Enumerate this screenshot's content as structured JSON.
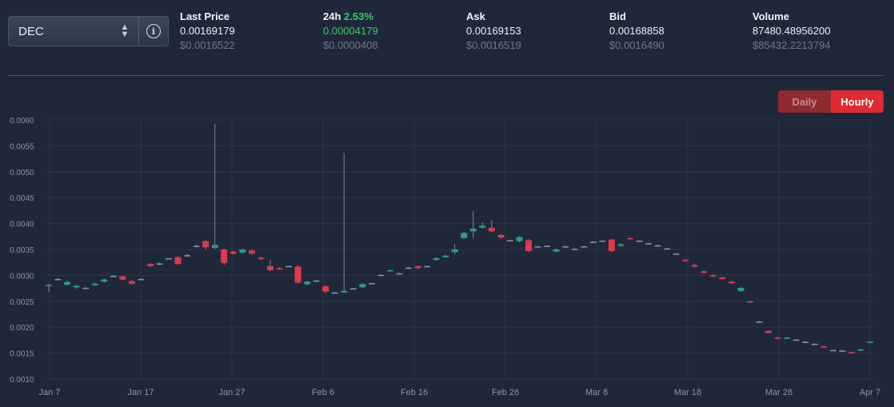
{
  "token": {
    "symbol": "DEC"
  },
  "stats": [
    {
      "key": "last",
      "label": "Last Price",
      "value": "0.00169179",
      "usd": "$0.0016522"
    },
    {
      "key": "change",
      "label": "24h",
      "pct": "2.53%",
      "value": "0.00004179",
      "usd": "$0.0000408"
    },
    {
      "key": "ask",
      "label": "Ask",
      "value": "0.00169153",
      "usd": "$0.0016519"
    },
    {
      "key": "bid",
      "label": "Bid",
      "value": "0.00168858",
      "usd": "$0.0016490"
    },
    {
      "key": "volume",
      "label": "Volume",
      "value": "87480.48956200",
      "usd": "$85432.2213794"
    }
  ],
  "toggle": {
    "daily": "Daily",
    "hourly": "Hourly",
    "active": "hourly"
  },
  "colors": {
    "up": "#26a17b",
    "down": "#e0384d",
    "neutral": "#8a93a3"
  },
  "chart_data": {
    "type": "candlestick",
    "x_ticks": [
      "Jan 7",
      "Jan 17",
      "Jan 27",
      "Feb 6",
      "Feb 16",
      "Feb 26",
      "Mar 8",
      "Mar 18",
      "Mar 28",
      "Apr 7"
    ],
    "y_ticks": [
      "0.0060",
      "0.0055",
      "0.0050",
      "0.0045",
      "0.0040",
      "0.0035",
      "0.0030",
      "0.0025",
      "0.0020",
      "0.0015",
      "0.0010"
    ],
    "ylim": [
      0.001,
      0.006
    ],
    "grid": true,
    "candles": [
      [
        0.0028,
        0.00282,
        0.00268,
        0.00284
      ],
      [
        0.00292,
        0.00293,
        0.0029,
        0.00295
      ],
      [
        0.00282,
        0.00287,
        0.0028,
        0.0029
      ],
      [
        0.00277,
        0.0028,
        0.00274,
        0.00282
      ],
      [
        0.00276,
        0.00276,
        0.00274,
        0.00278
      ],
      [
        0.00281,
        0.00284,
        0.0028,
        0.00286
      ],
      [
        0.00288,
        0.00292,
        0.00286,
        0.00294
      ],
      [
        0.00299,
        0.00298,
        0.00297,
        0.00301
      ],
      [
        0.00298,
        0.00292,
        0.0029,
        0.003
      ],
      [
        0.00289,
        0.00284,
        0.00283,
        0.00291
      ],
      [
        0.00293,
        0.00292,
        0.00291,
        0.00295
      ],
      [
        0.00322,
        0.00318,
        0.00316,
        0.00324
      ],
      [
        0.00322,
        0.00323,
        0.0032,
        0.00325
      ],
      [
        0.00332,
        0.00333,
        0.00331,
        0.00334
      ],
      [
        0.00335,
        0.00322,
        0.0032,
        0.00337
      ],
      [
        0.00338,
        0.00339,
        0.00336,
        0.00342
      ],
      [
        0.00357,
        0.00356,
        0.00354,
        0.0036
      ],
      [
        0.00366,
        0.00354,
        0.0035,
        0.00368
      ],
      [
        0.00353,
        0.00359,
        0.0035,
        0.00592
      ],
      [
        0.0035,
        0.00324,
        0.0032,
        0.00352
      ],
      [
        0.00346,
        0.00342,
        0.0034,
        0.00348
      ],
      [
        0.00344,
        0.0035,
        0.00342,
        0.00352
      ],
      [
        0.00348,
        0.00342,
        0.0034,
        0.0035
      ],
      [
        0.00334,
        0.00332,
        0.0033,
        0.00336
      ],
      [
        0.00318,
        0.0031,
        0.00308,
        0.0033
      ],
      [
        0.00314,
        0.00312,
        0.0031,
        0.00316
      ],
      [
        0.00317,
        0.00318,
        0.00316,
        0.00319
      ],
      [
        0.00317,
        0.00286,
        0.00284,
        0.0032
      ],
      [
        0.00283,
        0.00288,
        0.0028,
        0.0029
      ],
      [
        0.0029,
        0.0029,
        0.00288,
        0.00291
      ],
      [
        0.00279,
        0.00269,
        0.00265,
        0.00281
      ],
      [
        0.00267,
        0.00267,
        0.00265,
        0.00268
      ],
      [
        0.00267,
        0.0027,
        0.00266,
        0.00536
      ],
      [
        0.00275,
        0.00275,
        0.00274,
        0.00276
      ],
      [
        0.00277,
        0.00283,
        0.00276,
        0.00285
      ],
      [
        0.00284,
        0.00285,
        0.00283,
        0.00286
      ],
      [
        0.003,
        0.00301,
        0.00299,
        0.00302
      ],
      [
        0.00308,
        0.0031,
        0.00307,
        0.00311
      ],
      [
        0.00303,
        0.00304,
        0.00302,
        0.00305
      ],
      [
        0.00315,
        0.00315,
        0.00314,
        0.00316
      ],
      [
        0.00318,
        0.00314,
        0.00312,
        0.00319
      ],
      [
        0.00317,
        0.00318,
        0.00316,
        0.00319
      ],
      [
        0.0033,
        0.00333,
        0.00328,
        0.00335
      ],
      [
        0.00335,
        0.00338,
        0.00334,
        0.0034
      ],
      [
        0.00345,
        0.0035,
        0.0034,
        0.0036
      ],
      [
        0.00372,
        0.00382,
        0.0037,
        0.00384
      ],
      [
        0.00385,
        0.0039,
        0.00372,
        0.00424
      ],
      [
        0.00392,
        0.00396,
        0.0039,
        0.00402
      ],
      [
        0.00392,
        0.00385,
        0.00383,
        0.00407
      ],
      [
        0.00378,
        0.00373,
        0.0037,
        0.0038
      ],
      [
        0.00367,
        0.00368,
        0.00366,
        0.00369
      ],
      [
        0.00366,
        0.00374,
        0.00364,
        0.00376
      ],
      [
        0.00368,
        0.00347,
        0.00345,
        0.0037
      ],
      [
        0.00355,
        0.00356,
        0.00354,
        0.00357
      ],
      [
        0.00356,
        0.00357,
        0.00355,
        0.00358
      ],
      [
        0.00346,
        0.0035,
        0.00345,
        0.00352
      ],
      [
        0.00355,
        0.00356,
        0.00354,
        0.00358
      ],
      [
        0.00351,
        0.0035,
        0.00349,
        0.00353
      ],
      [
        0.00355,
        0.00356,
        0.00354,
        0.00357
      ],
      [
        0.00364,
        0.00365,
        0.00363,
        0.00366
      ],
      [
        0.00367,
        0.00366,
        0.00365,
        0.00368
      ],
      [
        0.00369,
        0.00347,
        0.00345,
        0.00371
      ],
      [
        0.00357,
        0.0036,
        0.00355,
        0.00362
      ],
      [
        0.00372,
        0.0037,
        0.00369,
        0.00373
      ],
      [
        0.00366,
        0.00367,
        0.00365,
        0.00368
      ],
      [
        0.00362,
        0.00361,
        0.0036,
        0.00363
      ],
      [
        0.00358,
        0.00357,
        0.00356,
        0.00359
      ],
      [
        0.00352,
        0.00351,
        0.0035,
        0.00353
      ],
      [
        0.00342,
        0.00341,
        0.0034,
        0.00343
      ],
      [
        0.0033,
        0.00328,
        0.00326,
        0.00332
      ],
      [
        0.0032,
        0.00317,
        0.00315,
        0.00322
      ],
      [
        0.00308,
        0.00305,
        0.00303,
        0.0031
      ],
      [
        0.003,
        0.00298,
        0.00297,
        0.00302
      ],
      [
        0.00296,
        0.00293,
        0.00292,
        0.00297
      ],
      [
        0.00288,
        0.00285,
        0.00284,
        0.00289
      ],
      [
        0.0027,
        0.00276,
        0.00268,
        0.00278
      ],
      [
        0.0025,
        0.00248,
        0.00247,
        0.00251
      ],
      [
        0.00211,
        0.0021,
        0.00209,
        0.00212
      ],
      [
        0.00193,
        0.00189,
        0.00188,
        0.00194
      ],
      [
        0.0018,
        0.00178,
        0.00177,
        0.00181
      ],
      [
        0.00178,
        0.0018,
        0.00177,
        0.00181
      ],
      [
        0.00176,
        0.00175,
        0.00174,
        0.00177
      ],
      [
        0.00172,
        0.00171,
        0.0017,
        0.00173
      ],
      [
        0.00168,
        0.00167,
        0.00166,
        0.00169
      ],
      [
        0.00163,
        0.00161,
        0.0016,
        0.00164
      ],
      [
        0.00156,
        0.00155,
        0.00154,
        0.00157
      ],
      [
        0.00155,
        0.00154,
        0.00153,
        0.00156
      ],
      [
        0.00152,
        0.0015,
        0.00149,
        0.00153
      ],
      [
        0.00155,
        0.00157,
        0.00154,
        0.00158
      ],
      [
        0.0017,
        0.00172,
        0.00169,
        0.00173
      ]
    ]
  }
}
